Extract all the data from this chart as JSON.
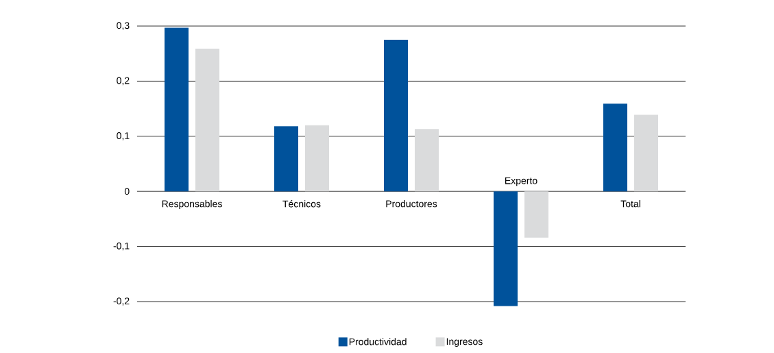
{
  "chart_data": {
    "type": "bar",
    "categories": [
      "Responsables",
      "Técnicos",
      "Productores",
      "Experto",
      "Total"
    ],
    "series": [
      {
        "name": "Productividad",
        "color": "#00529b",
        "values": [
          0.297,
          0.118,
          0.275,
          -0.208,
          0.159
        ]
      },
      {
        "name": "Ingresos",
        "color": "#dadbdc",
        "values": [
          0.259,
          0.12,
          0.113,
          -0.084,
          0.139
        ]
      }
    ],
    "ylim": [
      -0.21,
      0.3
    ],
    "yticks": [
      {
        "value": -0.2,
        "label": "-0,2"
      },
      {
        "value": -0.1,
        "label": "-0,1"
      },
      0,
      {
        "value": 0.1,
        "label": "0,1"
      },
      {
        "value": 0.2,
        "label": "0,2"
      },
      {
        "value": 0.3,
        "label": "0,3"
      }
    ],
    "grid": "y",
    "legend": "bottom"
  }
}
